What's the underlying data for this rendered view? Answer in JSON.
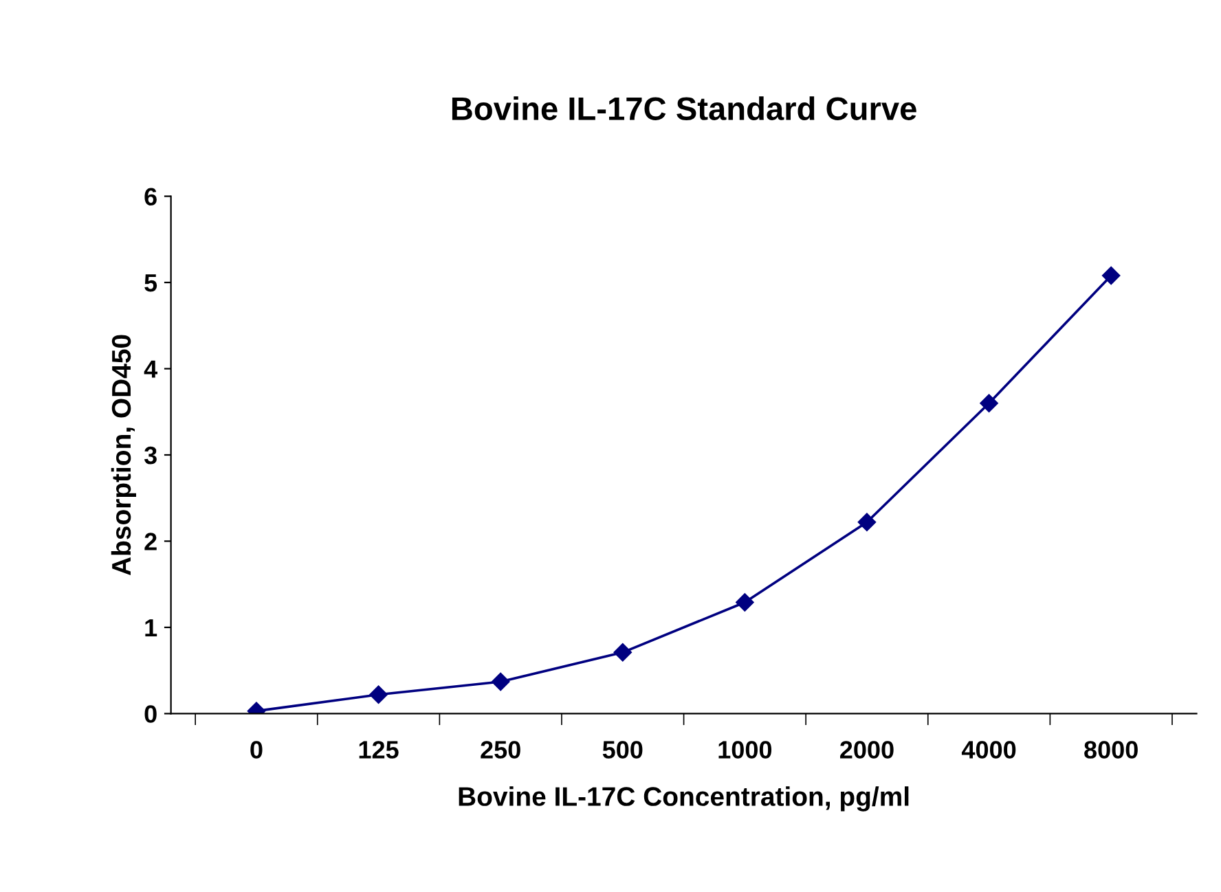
{
  "chart_data": {
    "type": "line",
    "title": "Bovine IL-17C Standard Curve",
    "xlabel": "Bovine IL-17C Concentration, pg/ml",
    "ylabel": "Absorption, OD450",
    "categories": [
      "0",
      "125",
      "250",
      "500",
      "1000",
      "2000",
      "4000",
      "8000"
    ],
    "series": [
      {
        "color": "#000080",
        "values": [
          0.03,
          0.22,
          0.37,
          0.71,
          1.29,
          2.22,
          3.6,
          5.08
        ]
      }
    ],
    "ylim": [
      0,
      6
    ],
    "yticks": [
      0,
      1,
      2,
      3,
      4,
      5,
      6
    ],
    "grid": false,
    "legend": false,
    "marker": "diamond",
    "line_style": "solid"
  }
}
